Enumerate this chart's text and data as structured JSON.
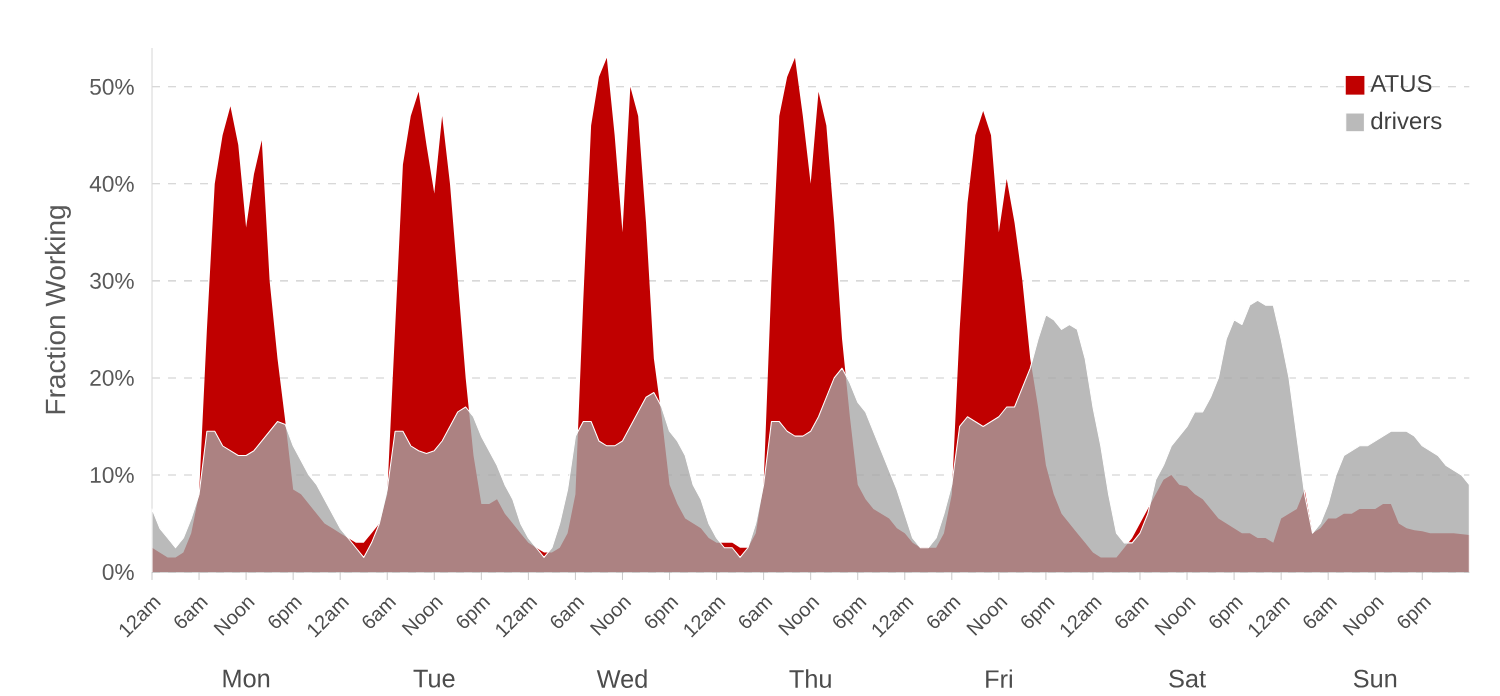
{
  "chart_data": {
    "type": "area",
    "ylabel": "Fraction Working",
    "ylim": [
      0,
      54
    ],
    "yticks": [
      {
        "value": 0,
        "label": "0%"
      },
      {
        "value": 10,
        "label": "10%"
      },
      {
        "value": 20,
        "label": "20%"
      },
      {
        "value": 30,
        "label": "30%"
      },
      {
        "value": 40,
        "label": "40%"
      },
      {
        "value": 50,
        "label": "50%"
      }
    ],
    "categories": [
      "12am",
      null,
      null,
      null,
      null,
      null,
      "6am",
      null,
      null,
      null,
      null,
      null,
      "Noon",
      null,
      null,
      null,
      null,
      null,
      "6pm",
      null,
      null,
      null,
      null,
      null,
      "12am",
      null,
      null,
      null,
      null,
      null,
      "6am",
      null,
      null,
      null,
      null,
      null,
      "Noon",
      null,
      null,
      null,
      null,
      null,
      "6pm",
      null,
      null,
      null,
      null,
      null,
      "12am",
      null,
      null,
      null,
      null,
      null,
      "6am",
      null,
      null,
      null,
      null,
      null,
      "Noon",
      null,
      null,
      null,
      null,
      null,
      "6pm",
      null,
      null,
      null,
      null,
      null,
      "12am",
      null,
      null,
      null,
      null,
      null,
      "6am",
      null,
      null,
      null,
      null,
      null,
      "Noon",
      null,
      null,
      null,
      null,
      null,
      "6pm",
      null,
      null,
      null,
      null,
      null,
      "12am",
      null,
      null,
      null,
      null,
      null,
      "6am",
      null,
      null,
      null,
      null,
      null,
      "Noon",
      null,
      null,
      null,
      null,
      null,
      "6pm",
      null,
      null,
      null,
      null,
      null,
      "12am",
      null,
      null,
      null,
      null,
      null,
      "6am",
      null,
      null,
      null,
      null,
      null,
      "Noon",
      null,
      null,
      null,
      null,
      null,
      "6pm",
      null,
      null,
      null,
      null,
      null,
      "12am",
      null,
      null,
      null,
      null,
      null,
      "6am",
      null,
      null,
      null,
      null,
      null,
      "Noon",
      null,
      null,
      null,
      null,
      null,
      "6pm",
      null,
      null,
      null,
      null,
      null,
      null
    ],
    "grid": "y",
    "legend": "top right",
    "annotations": [
      "Mon",
      "Tue",
      "Wed",
      "Thu",
      "Fri",
      "Sat",
      "Sun"
    ],
    "series": [
      {
        "name": "ATUS",
        "color": "#c00000",
        "values": [
          2.5,
          2,
          1.5,
          1.5,
          2,
          4,
          8,
          25,
          40,
          45,
          48,
          44,
          35.5,
          41,
          44.5,
          30,
          22,
          15.5,
          8.5,
          8,
          7,
          6,
          5,
          4.5,
          4,
          3.5,
          3,
          3,
          4,
          5,
          8,
          25,
          42,
          47,
          49.5,
          44,
          39,
          47,
          40,
          30,
          20,
          12,
          7,
          7,
          7.5,
          6,
          5,
          4,
          3,
          2.5,
          2,
          2,
          2.5,
          4,
          8,
          28,
          46,
          51,
          53,
          45,
          35,
          50,
          47,
          36,
          22,
          16,
          9,
          7,
          5.5,
          5,
          4.5,
          3.5,
          3,
          3,
          3,
          2.5,
          2.5,
          4,
          9,
          30,
          47,
          51,
          53,
          47,
          40,
          49.5,
          46,
          36,
          24,
          16,
          9,
          7.5,
          6.5,
          6,
          5.5,
          4.5,
          4,
          3,
          2.5,
          2.5,
          2.5,
          4,
          8,
          25,
          38,
          45,
          47.5,
          45,
          35,
          40.5,
          36,
          30,
          22,
          17,
          11,
          8,
          6,
          5,
          4,
          3,
          2,
          1.5,
          1.5,
          1.5,
          2.5,
          3.5,
          5,
          6.5,
          8,
          9.5,
          10,
          9,
          8.8,
          8,
          7.5,
          6.5,
          5.5,
          5,
          4.5,
          4,
          4,
          3.5,
          3.5,
          3,
          5.5,
          6,
          6.5,
          8.5,
          4,
          4.5,
          5.5,
          5.5,
          6,
          6,
          6.5,
          6.5,
          6.5,
          7,
          7,
          5,
          4.5,
          4.3,
          4.2,
          4,
          4,
          4,
          4,
          3.9,
          3.8
        ]
      },
      {
        "name": "drivers",
        "color": "#a6a6a6",
        "values": [
          6.5,
          4.5,
          3.5,
          2.5,
          3.5,
          5.5,
          8,
          14.5,
          14.5,
          13,
          12.5,
          12,
          12,
          12.5,
          13.5,
          14.5,
          15.5,
          15.2,
          13,
          11.5,
          10,
          9,
          7.5,
          6,
          4.5,
          3.5,
          2.5,
          1.5,
          3,
          5,
          8.5,
          14.5,
          14.5,
          13,
          12.5,
          12.2,
          12.5,
          13.5,
          15,
          16.5,
          17,
          16,
          14,
          12.5,
          11,
          9,
          7.5,
          5,
          3.5,
          2.5,
          1.5,
          2.5,
          5,
          8.5,
          14,
          15.5,
          15.5,
          13.5,
          13,
          13,
          13.5,
          15,
          16.5,
          18,
          18.5,
          17,
          14.5,
          13.5,
          12,
          9,
          7.5,
          5,
          3.5,
          2.5,
          2.5,
          1.5,
          2.5,
          5,
          9,
          15.5,
          15.5,
          14.5,
          14,
          14,
          14.5,
          16,
          18,
          20,
          21,
          19.5,
          17.5,
          16.5,
          14.5,
          12.5,
          10.5,
          8.5,
          6,
          3.5,
          2.5,
          2.5,
          3.5,
          6,
          9,
          15,
          16,
          15.5,
          15,
          15.5,
          16,
          17,
          17,
          19,
          21,
          24,
          26.5,
          26,
          25,
          25.5,
          25,
          22,
          17,
          13,
          8,
          4,
          3,
          3,
          4,
          6,
          9.5,
          11,
          13,
          14,
          15,
          16.5,
          16.5,
          18,
          20,
          24,
          26,
          25.5,
          27.5,
          28,
          27.5,
          27.5,
          24,
          20,
          14,
          8,
          4,
          5,
          7,
          10,
          12,
          12.5,
          13,
          13,
          13.5,
          14,
          14.5,
          14.5,
          14.5,
          14,
          13,
          12.5,
          12,
          11,
          10.5,
          10,
          9
        ]
      }
    ]
  }
}
